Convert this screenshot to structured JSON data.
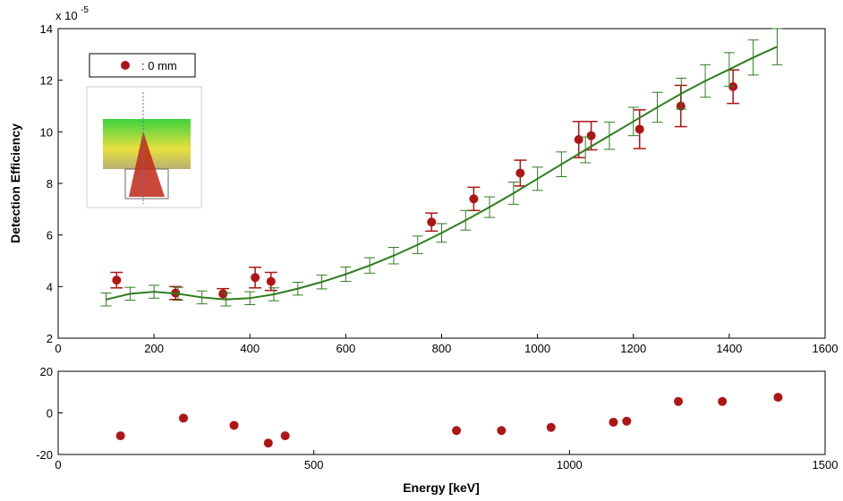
{
  "chart_data": [
    {
      "type": "scatter",
      "ylabel": "Detection Efficiency",
      "y_scale_label": "x 10",
      "y_scale_exponent": "-5",
      "xlim": [
        0,
        1600
      ],
      "xticks": [
        0,
        200,
        400,
        600,
        800,
        1000,
        1200,
        1400,
        1600
      ],
      "ylim": [
        2,
        14
      ],
      "yticks": [
        2,
        4,
        6,
        8,
        10,
        12,
        14
      ],
      "legend": "top-left",
      "series": [
        {
          "name": ": 0 mm",
          "color": "#b01515",
          "x": [
            122,
            245,
            344,
            411,
            444,
            779,
            867,
            964,
            1086,
            1112,
            1213,
            1299,
            1408
          ],
          "values": [
            4.25,
            3.75,
            3.72,
            4.35,
            4.2,
            6.5,
            7.4,
            8.4,
            9.7,
            9.85,
            10.1,
            11.0,
            11.75
          ],
          "errors": [
            0.3,
            0.25,
            0.2,
            0.4,
            0.35,
            0.35,
            0.45,
            0.5,
            0.7,
            0.55,
            0.75,
            0.8,
            0.65
          ]
        },
        {
          "color": "#2e7d1e",
          "style": "line",
          "x": [
            100,
            150,
            200,
            250,
            300,
            350,
            400,
            450,
            500,
            550,
            600,
            650,
            700,
            750,
            800,
            850,
            900,
            950,
            1000,
            1050,
            1100,
            1150,
            1200,
            1250,
            1300,
            1350,
            1400,
            1450,
            1500
          ],
          "values": [
            3.5,
            3.72,
            3.8,
            3.72,
            3.58,
            3.5,
            3.55,
            3.7,
            3.92,
            4.18,
            4.48,
            4.82,
            5.2,
            5.62,
            6.08,
            6.57,
            7.08,
            7.62,
            8.18,
            8.74,
            9.3,
            9.85,
            10.4,
            10.95,
            11.48,
            11.97,
            12.42,
            12.88,
            13.3
          ],
          "errors": [
            0.25,
            0.25,
            0.25,
            0.25,
            0.25,
            0.25,
            0.25,
            0.25,
            0.25,
            0.27,
            0.28,
            0.3,
            0.32,
            0.34,
            0.36,
            0.38,
            0.4,
            0.43,
            0.45,
            0.48,
            0.5,
            0.53,
            0.55,
            0.58,
            0.6,
            0.63,
            0.65,
            0.68,
            0.7
          ]
        }
      ]
    },
    {
      "type": "scatter",
      "xlabel": "Energy [keV]",
      "xlim": [
        0,
        1500
      ],
      "xticks": [
        0,
        500,
        1000,
        1500
      ],
      "ylim": [
        -20,
        20
      ],
      "yticks": [
        -20,
        0,
        20
      ],
      "series": [
        {
          "color": "#b01515",
          "x": [
            122,
            245,
            344,
            411,
            444,
            779,
            867,
            964,
            1086,
            1112,
            1213,
            1299,
            1408
          ],
          "values": [
            -11,
            -2.5,
            -6,
            -14.5,
            -11,
            -8.5,
            -8.5,
            -7,
            -4.5,
            -4,
            5.5,
            5.5,
            7.5
          ]
        }
      ]
    }
  ]
}
